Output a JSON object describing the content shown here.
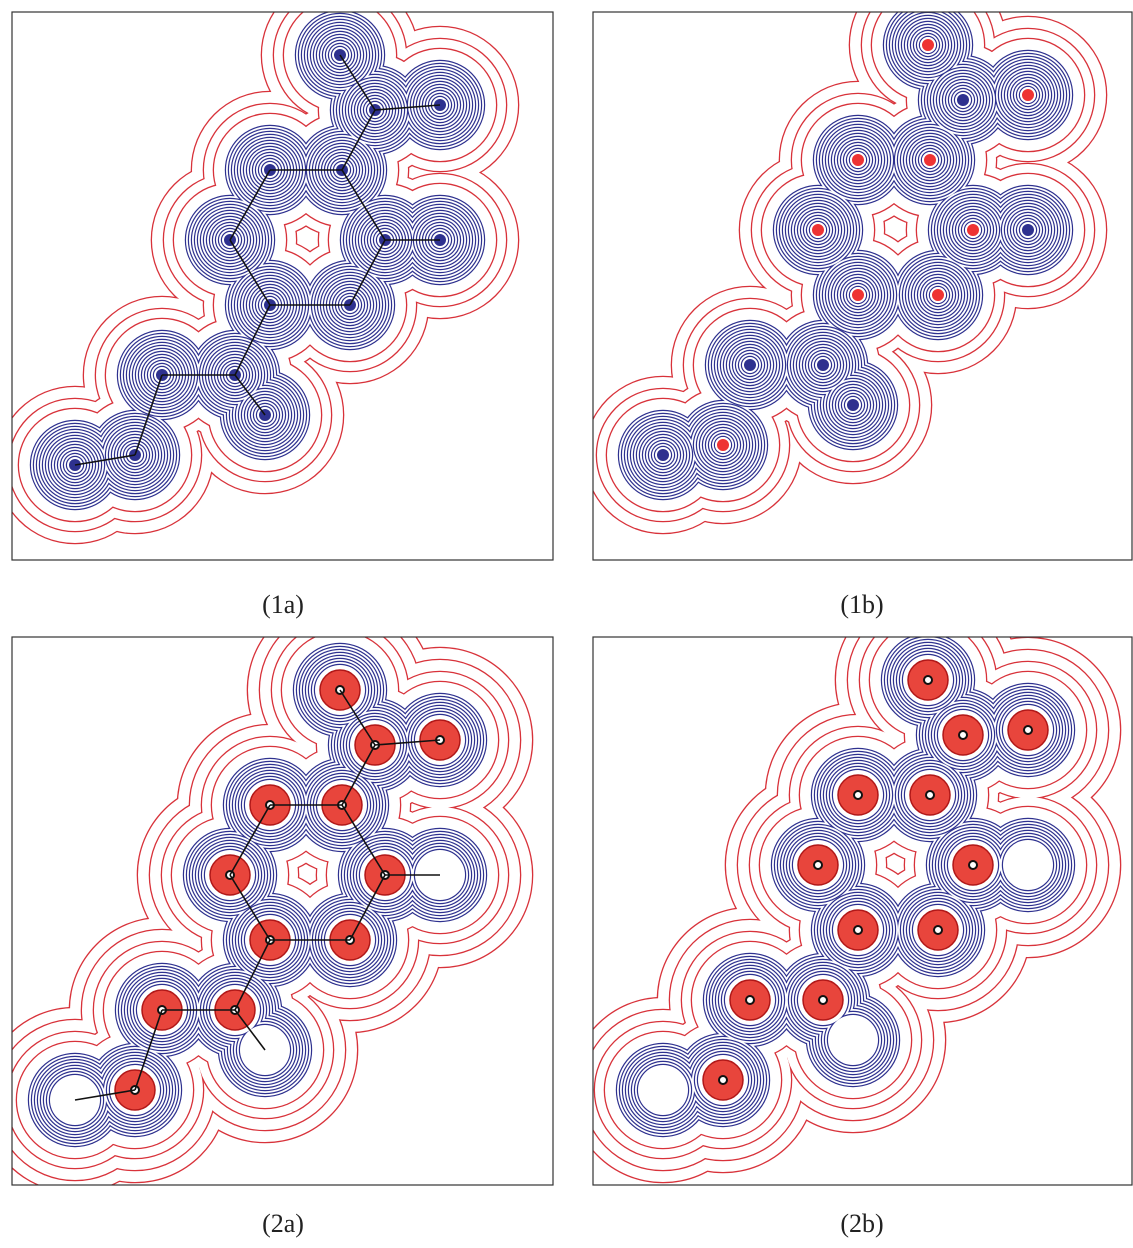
{
  "figures": [
    {
      "label": "(1a)"
    },
    {
      "label": "(1b)"
    },
    {
      "label": "(2a)"
    },
    {
      "label": "(2b)"
    }
  ]
}
